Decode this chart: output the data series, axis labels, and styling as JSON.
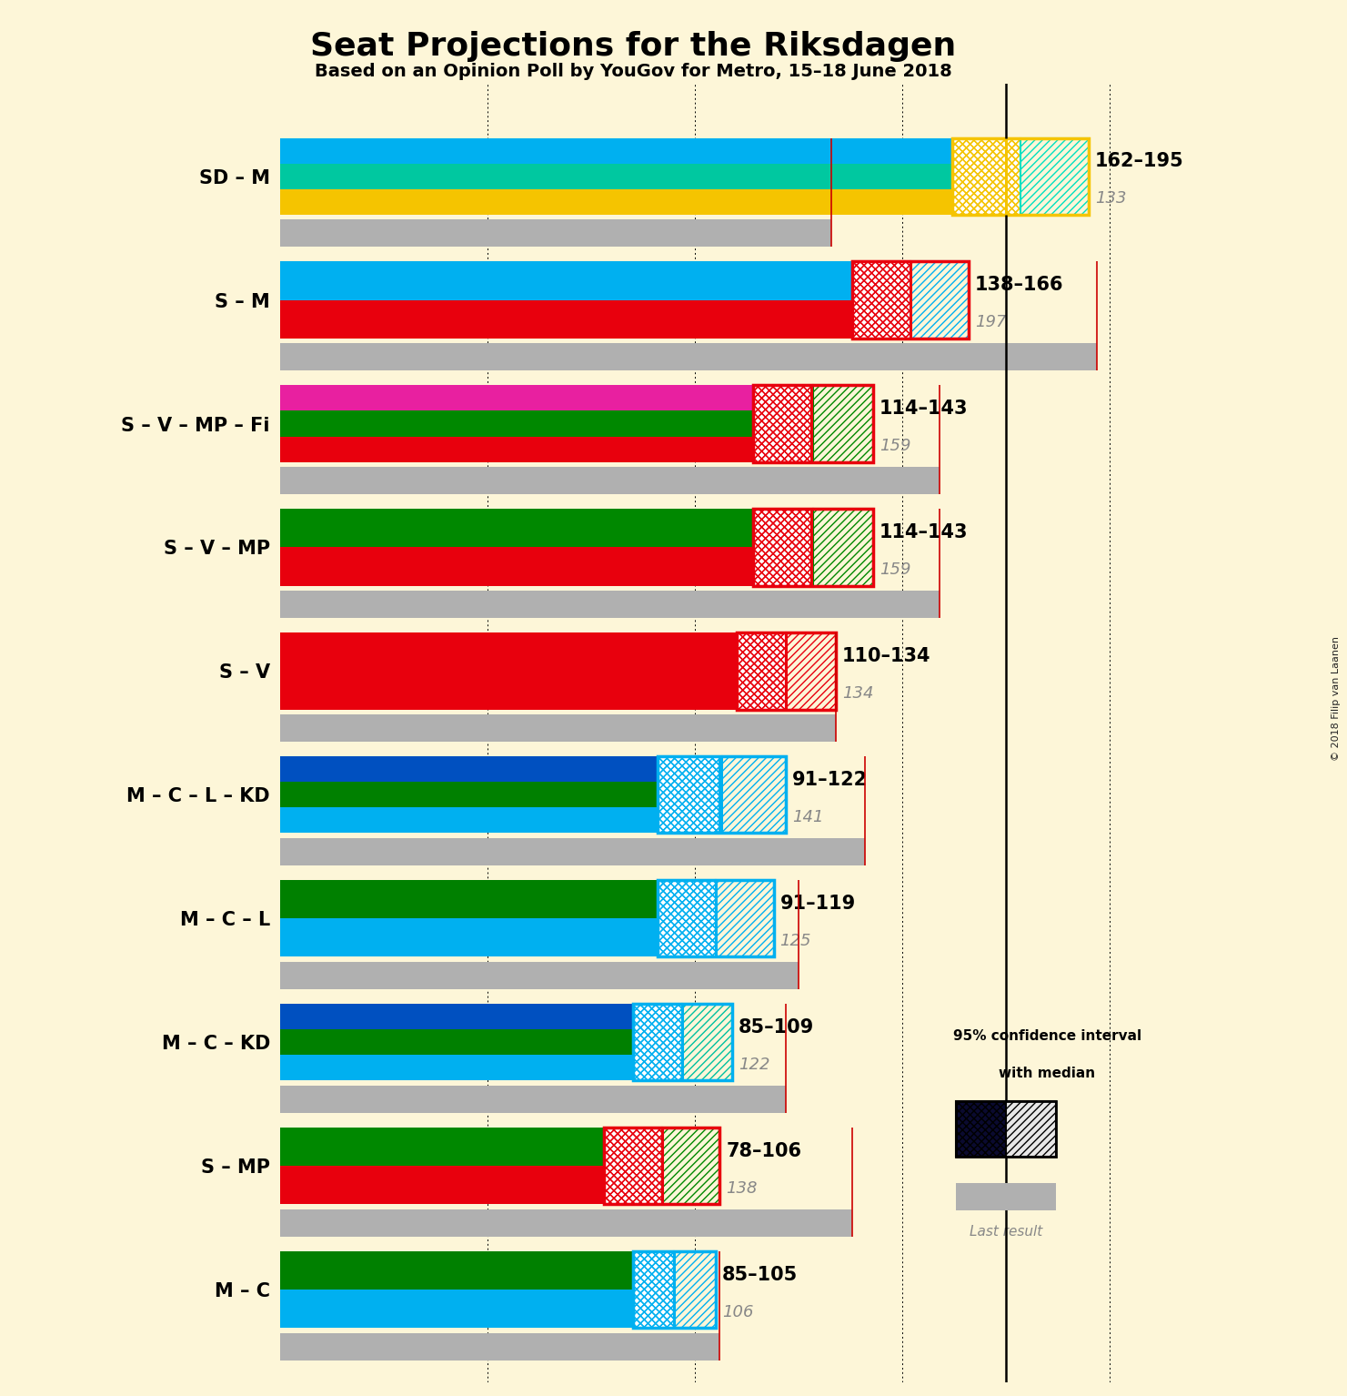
{
  "title": "Seat Projections for the Riksdagen",
  "subtitle": "Based on an Opinion Poll by YouGov for Metro, 15–18 June 2018",
  "copyright": "© 2018 Filip van Laanen",
  "background_color": "#fdf6d8",
  "xlim": [
    0,
    215
  ],
  "dotted_lines": [
    50,
    100,
    150,
    200
  ],
  "solid_line": 175,
  "coalitions": [
    {
      "name": "SD – M",
      "ci_low": 162,
      "ci_high": 195,
      "median": 175,
      "last": 133,
      "stripes": [
        "#f5c400",
        "#00c8a0",
        "#00b0f0"
      ],
      "ci_hatch_color": "#f5c400",
      "ci_right_hatch_color": "#00e0c0",
      "red_line": true
    },
    {
      "name": "S – M",
      "ci_low": 138,
      "ci_high": 166,
      "median": 152,
      "last": 197,
      "stripes": [
        "#e8000d",
        "#00b0f0"
      ],
      "ci_hatch_color": "#e8000d",
      "ci_right_hatch_color": "#00b0f0",
      "red_line": true
    },
    {
      "name": "S – V – MP – Fi",
      "ci_low": 114,
      "ci_high": 143,
      "median": 128,
      "last": 159,
      "stripes": [
        "#e8000d",
        "#008800",
        "#e820a0"
      ],
      "ci_hatch_color": "#e8000d",
      "ci_right_hatch_color": "#008800",
      "red_line": false
    },
    {
      "name": "S – V – MP",
      "ci_low": 114,
      "ci_high": 143,
      "median": 128,
      "last": 159,
      "stripes": [
        "#e8000d",
        "#008800"
      ],
      "ci_hatch_color": "#e8000d",
      "ci_right_hatch_color": "#008800",
      "red_line": false
    },
    {
      "name": "S – V",
      "ci_low": 110,
      "ci_high": 134,
      "median": 122,
      "last": 134,
      "stripes": [
        "#e8000d"
      ],
      "ci_hatch_color": "#e8000d",
      "ci_right_hatch_color": "#e8000d",
      "red_line": false
    },
    {
      "name": "M – C – L – KD",
      "ci_low": 91,
      "ci_high": 122,
      "median": 106,
      "last": 141,
      "stripes": [
        "#00b0f0",
        "#008000",
        "#0050c0"
      ],
      "ci_hatch_color": "#00b0f0",
      "ci_right_hatch_color": "#00b0f0",
      "red_line": false
    },
    {
      "name": "M – C – L",
      "ci_low": 91,
      "ci_high": 119,
      "median": 105,
      "last": 125,
      "stripes": [
        "#00b0f0",
        "#008000"
      ],
      "ci_hatch_color": "#00b0f0",
      "ci_right_hatch_color": "#00b0f0",
      "red_line": false
    },
    {
      "name": "M – C – KD",
      "ci_low": 85,
      "ci_high": 109,
      "median": 97,
      "last": 122,
      "stripes": [
        "#00b0f0",
        "#008000",
        "#0050c0"
      ],
      "ci_hatch_color": "#00b0f0",
      "ci_right_hatch_color": "#00c0a0",
      "red_line": false
    },
    {
      "name": "S – MP",
      "ci_low": 78,
      "ci_high": 106,
      "median": 92,
      "last": 138,
      "stripes": [
        "#e8000d",
        "#008800"
      ],
      "ci_hatch_color": "#e8000d",
      "ci_right_hatch_color": "#008800",
      "red_line": false
    },
    {
      "name": "M – C",
      "ci_low": 85,
      "ci_high": 105,
      "median": 95,
      "last": 106,
      "stripes": [
        "#00b0f0",
        "#008000"
      ],
      "ci_hatch_color": "#00b0f0",
      "ci_right_hatch_color": "#00b0f0",
      "red_line": false
    }
  ]
}
